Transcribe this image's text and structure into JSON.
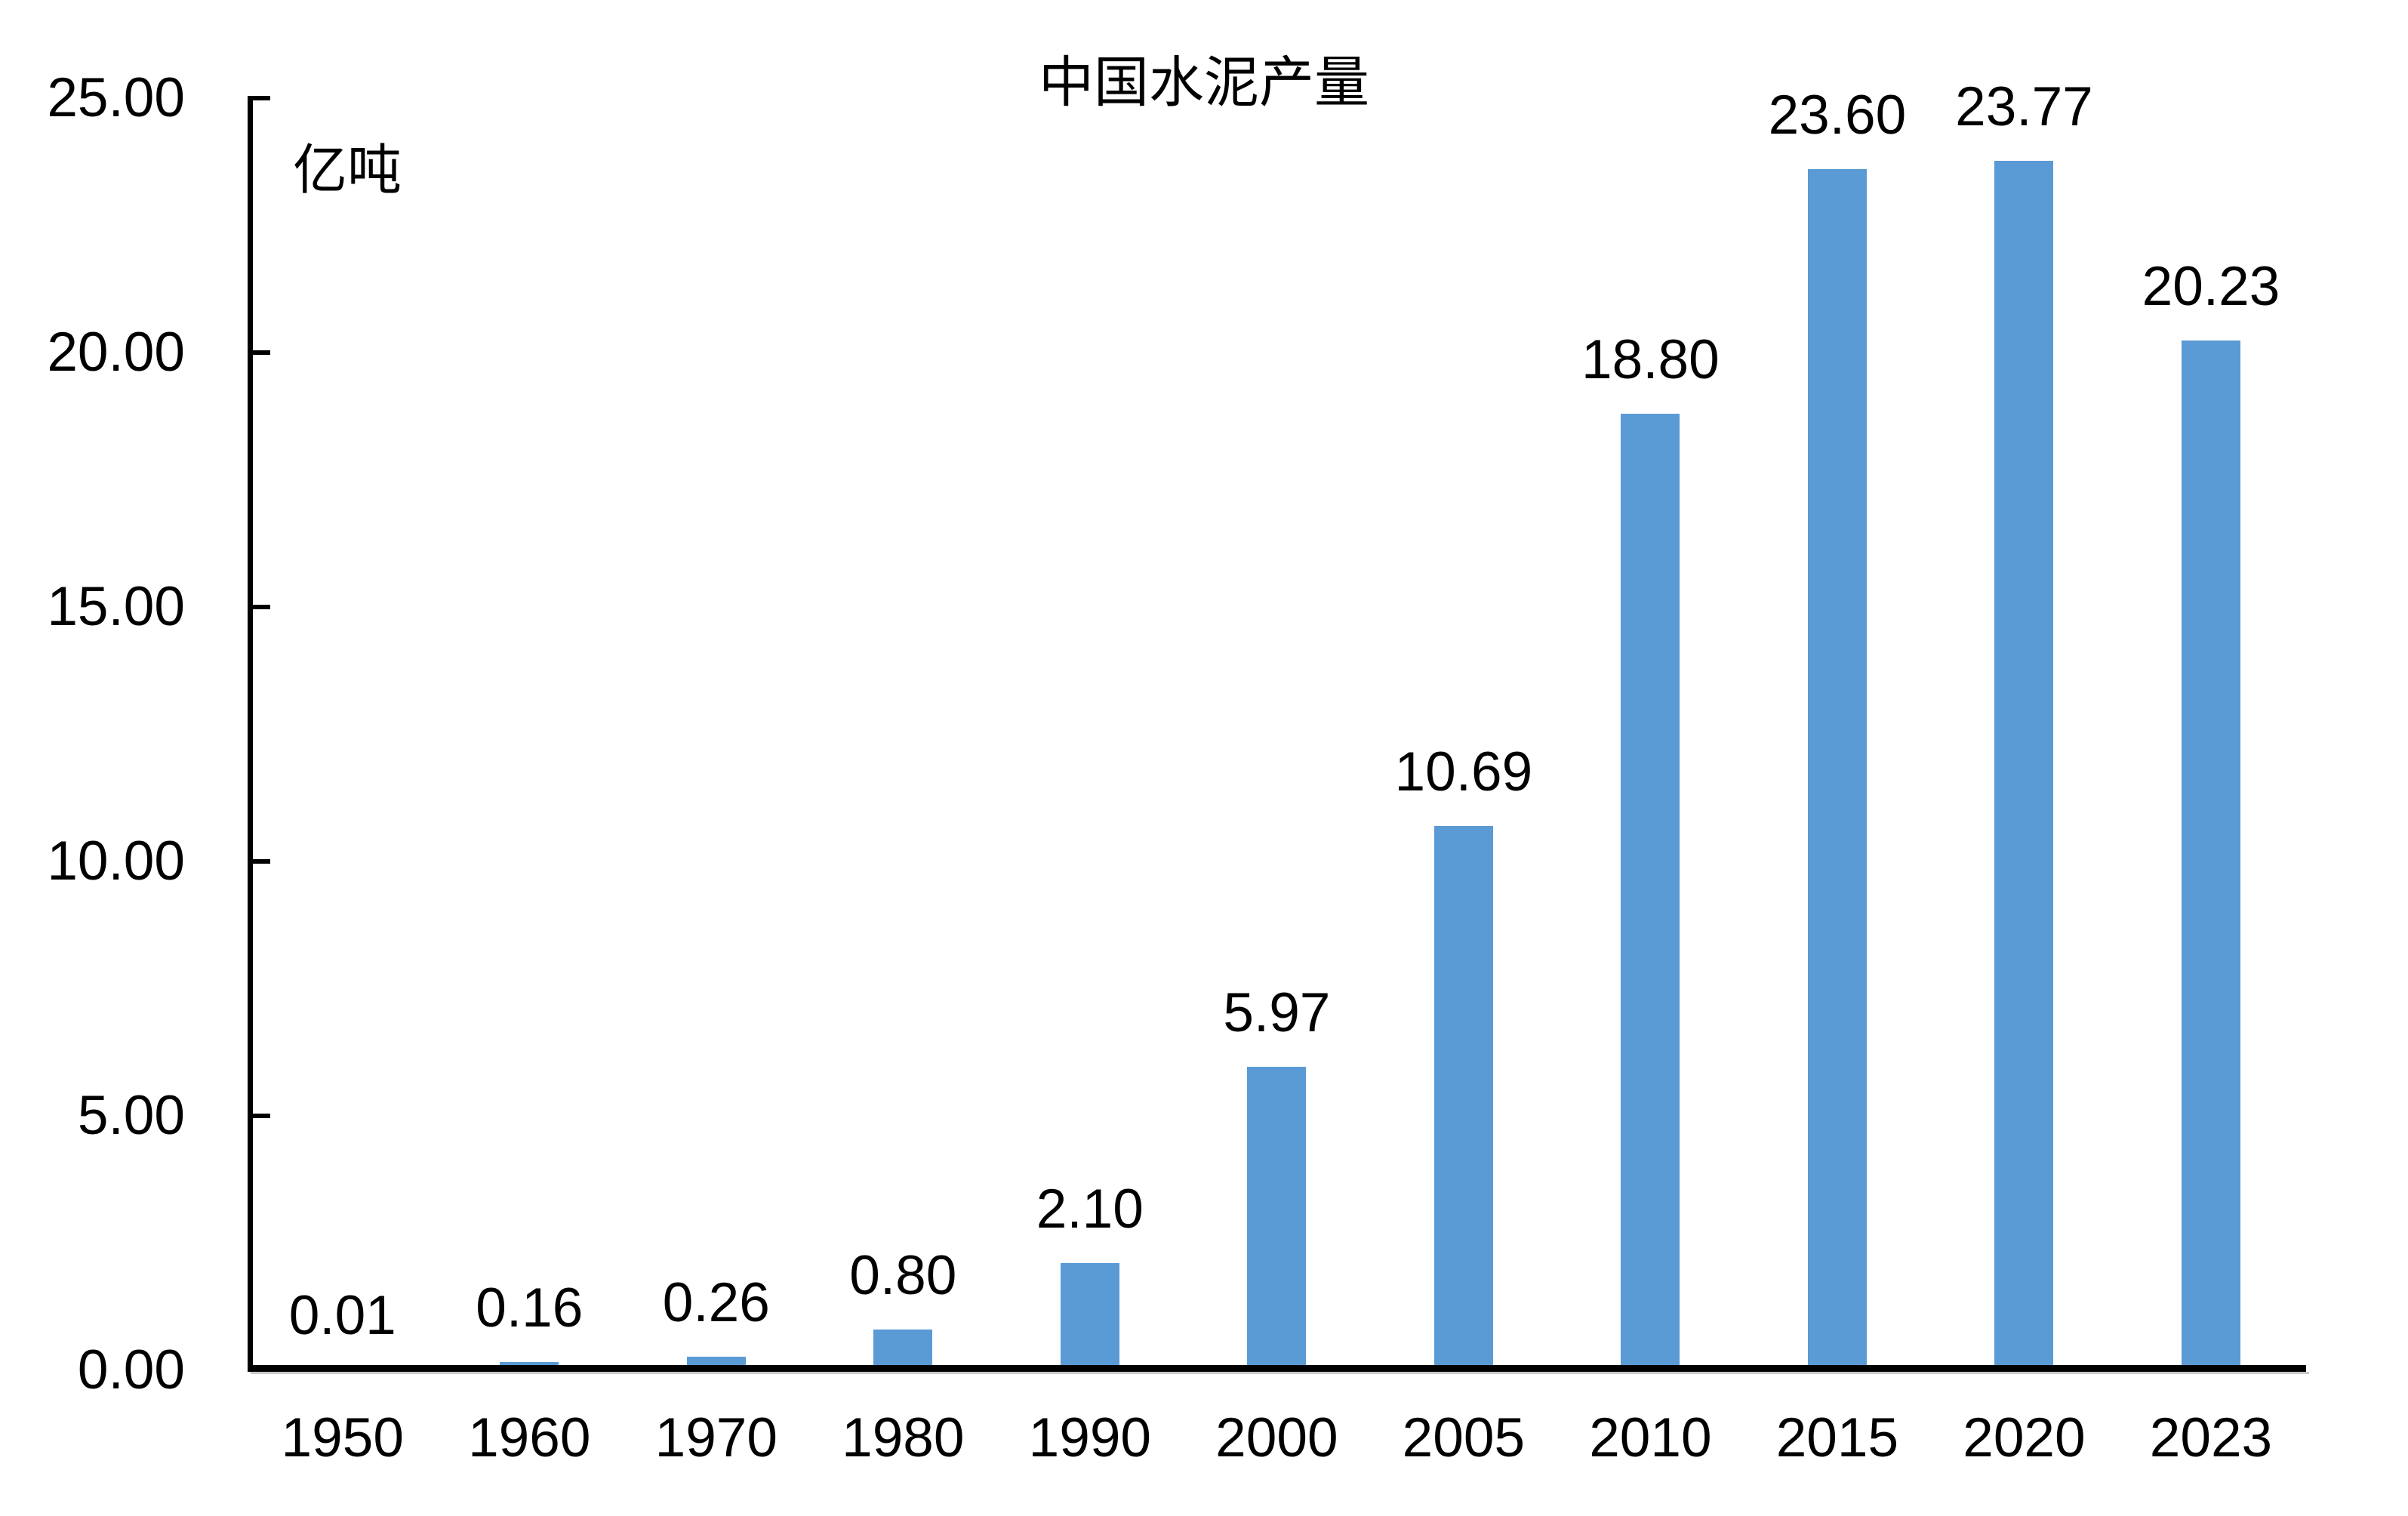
{
  "chart_data": {
    "type": "bar",
    "title": "中国水泥产量",
    "unit_label": "亿吨",
    "categories": [
      "1950",
      "1960",
      "1970",
      "1980",
      "1990",
      "2000",
      "2005",
      "2010",
      "2015",
      "2020",
      "2023"
    ],
    "values": [
      0.01,
      0.16,
      0.26,
      0.8,
      2.1,
      5.97,
      10.69,
      18.8,
      23.6,
      23.77,
      20.23
    ],
    "data_labels": [
      "0.01",
      "0.16",
      "0.26",
      "0.80",
      "2.10",
      "5.97",
      "10.69",
      "18.80",
      "23.60",
      "23.77",
      "20.23"
    ],
    "ylabel": "亿吨",
    "xlabel": "",
    "ylim": [
      0,
      25
    ],
    "y_ticks": {
      "values": [
        0,
        5,
        10,
        15,
        20,
        25
      ],
      "labels": [
        "0.00",
        "5.00",
        "10.00",
        "15.00",
        "20.00",
        "25.00"
      ]
    },
    "grid": "off",
    "legend": "none",
    "colors": {
      "bar": "#5B9BD5",
      "text": "#000000",
      "axis": "#000000"
    }
  }
}
